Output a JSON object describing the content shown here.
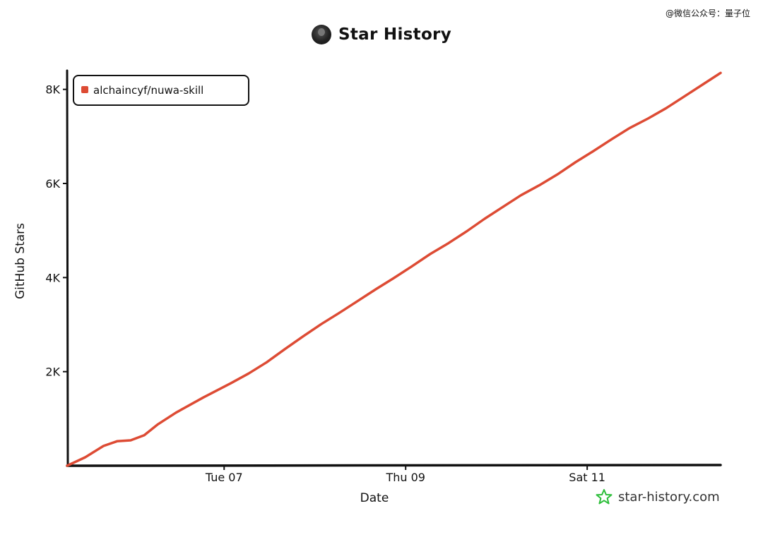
{
  "watermark": "@微信公众号：量子位",
  "header": {
    "title": "Star History",
    "avatar_icon": "avatar-icon"
  },
  "brand": {
    "text": "star-history.com",
    "icon": "star-logo-icon",
    "icon_color": "#2dbe3a"
  },
  "colors": {
    "series": "#dd4b34",
    "axis": "#111111"
  },
  "chart_data": {
    "type": "line",
    "title": "Star History",
    "xlabel": "Date",
    "ylabel": "GitHub Stars",
    "x_ticks": [
      "Tue 07",
      "Thu 09",
      "Sat 11"
    ],
    "y_ticks": [
      "2K",
      "4K",
      "6K",
      "8K"
    ],
    "y_tick_values": [
      2000,
      4000,
      6000,
      8000
    ],
    "ylim": [
      0,
      8400
    ],
    "xlim_days": [
      0,
      7.2
    ],
    "x_tick_days": [
      1.73,
      3.73,
      5.73
    ],
    "legend_position": "top-left",
    "grid": false,
    "series": [
      {
        "name": "alchaincyf/nuwa-skill",
        "color": "#dd4b34",
        "x_days": [
          0.0,
          0.2,
          0.4,
          0.55,
          0.7,
          0.85,
          1.0,
          1.2,
          1.5,
          1.8,
          2.0,
          2.2,
          2.4,
          2.6,
          2.8,
          3.0,
          3.2,
          3.4,
          3.6,
          3.8,
          4.0,
          4.2,
          4.4,
          4.6,
          4.8,
          5.0,
          5.2,
          5.4,
          5.6,
          5.8,
          6.0,
          6.2,
          6.4,
          6.6,
          6.8,
          7.0,
          7.2
        ],
        "y": [
          0,
          180,
          420,
          520,
          540,
          650,
          880,
          1130,
          1450,
          1750,
          1960,
          2200,
          2480,
          2750,
          3010,
          3250,
          3500,
          3750,
          3990,
          4240,
          4500,
          4730,
          4980,
          5250,
          5500,
          5750,
          5960,
          6190,
          6450,
          6690,
          6940,
          7180,
          7380,
          7600,
          7850,
          8100,
          8350
        ]
      }
    ]
  }
}
